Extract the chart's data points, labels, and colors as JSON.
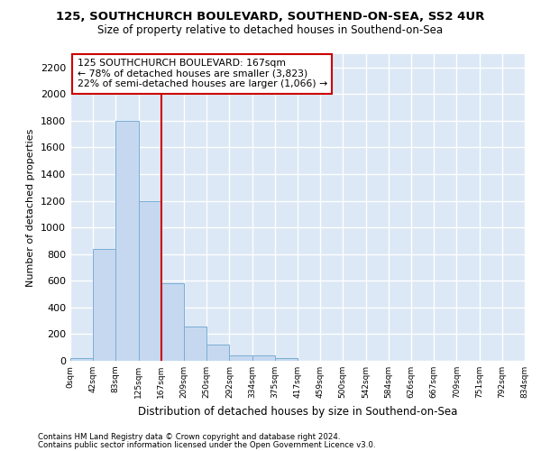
{
  "title1": "125, SOUTHCHURCH BOULEVARD, SOUTHEND-ON-SEA, SS2 4UR",
  "title2": "Size of property relative to detached houses in Southend-on-Sea",
  "xlabel": "Distribution of detached houses by size in Southend-on-Sea",
  "ylabel": "Number of detached properties",
  "bin_edges": [
    0,
    42,
    83,
    125,
    167,
    209,
    250,
    292,
    334,
    375,
    417,
    459,
    500,
    542,
    584,
    626,
    667,
    709,
    751,
    792,
    834
  ],
  "bar_heights": [
    20,
    840,
    1800,
    1200,
    580,
    255,
    120,
    40,
    38,
    22,
    0,
    0,
    0,
    0,
    0,
    0,
    0,
    0,
    0,
    0
  ],
  "bar_color": "#c5d8f0",
  "bar_edge_color": "#7aaed4",
  "vline_x": 167,
  "vline_color": "#cc0000",
  "ylim": [
    0,
    2300
  ],
  "yticks": [
    0,
    200,
    400,
    600,
    800,
    1000,
    1200,
    1400,
    1600,
    1800,
    2000,
    2200
  ],
  "annotation_text": "125 SOUTHCHURCH BOULEVARD: 167sqm\n← 78% of detached houses are smaller (3,823)\n22% of semi-detached houses are larger (1,066) →",
  "annotation_box_color": "#ffffff",
  "annotation_box_edge": "#cc0000",
  "footer1": "Contains HM Land Registry data © Crown copyright and database right 2024.",
  "footer2": "Contains public sector information licensed under the Open Government Licence v3.0.",
  "fig_bg_color": "#ffffff",
  "plot_bg_color": "#dce8f5",
  "grid_color": "#ffffff"
}
